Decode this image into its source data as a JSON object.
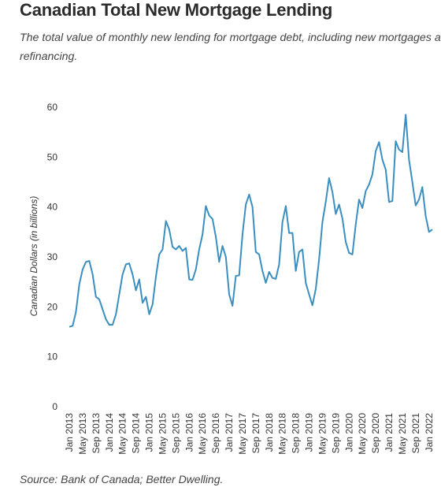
{
  "header": {
    "title": "Canadian Total New Mortgage Lending",
    "subtitle": "The total value of monthly new lending for mortgage debt, including new mortgages and refinancing."
  },
  "footer": {
    "source": "Source: Bank of Canada; Better Dwelling."
  },
  "colors": {
    "line": "#3a8fc0",
    "text": "#333333"
  },
  "chart_data": {
    "type": "line",
    "title": "Canadian Total New Mortgage Lending",
    "ylabel": "Canadian Dollars (in billions)",
    "xlabel": "",
    "ylim": [
      0,
      60
    ],
    "yticks": [
      0,
      10,
      20,
      30,
      40,
      50,
      60
    ],
    "grid": false,
    "legend": "none",
    "x_tick_labels": [
      "Jan 2013",
      "May 2013",
      "Sep 2013",
      "Jan 2014",
      "May 2014",
      "Sep 2014",
      "Jan 2015",
      "May 2015",
      "Sep 2015",
      "Jan 2016",
      "May 2016",
      "Sep 2016",
      "Jan 2017",
      "May 2017",
      "Sep 2017",
      "Jan 2018",
      "May 2018",
      "Sep 2018",
      "Jan 2019",
      "May 2019",
      "Sep 2019",
      "Jan 2020",
      "May 2020",
      "Sep 2020",
      "Jan 2021",
      "May 2021",
      "Sep 2021",
      "Jan 2022"
    ],
    "x_start": "Jan 2013",
    "series": [
      {
        "values": [
          16,
          16.2,
          19,
          24.5,
          27.5,
          29,
          29.2,
          26.5,
          22,
          21.5,
          19.5,
          17.5,
          16.4,
          16.4,
          18.5,
          22.5,
          26.5,
          28.5,
          28.7,
          26.5,
          23.3,
          25.5,
          20.8,
          22,
          18.5,
          20.5,
          26,
          30.5,
          31.5,
          37.2,
          35.5,
          32,
          31.5,
          32.2,
          31.2,
          31.8,
          25.5,
          25.4,
          27.5,
          31.5,
          34.5,
          40.2,
          38.3,
          37.6,
          34,
          29,
          32.2,
          30,
          22.5,
          20.2,
          26.2,
          26.3,
          34.5,
          40.5,
          42.5,
          40,
          31,
          30.5,
          27.2,
          24.8,
          27,
          25.8,
          25.6,
          28.5,
          37,
          40.2,
          34.8,
          34.8,
          27.2,
          31,
          31.5,
          24.8,
          22.5,
          20.3,
          23.6,
          29.5,
          37,
          41,
          45.8,
          43,
          38.6,
          40.5,
          37.7,
          33,
          30.8,
          30.5,
          36.5,
          41.5,
          39.8,
          43.2,
          44.5,
          46.5,
          51.2,
          53,
          49.5,
          47.5,
          41,
          41.2,
          53.2,
          51.5,
          51,
          58.5,
          49.5,
          45,
          40.3,
          41.5,
          44,
          38.2,
          35,
          35.5
        ]
      }
    ]
  }
}
